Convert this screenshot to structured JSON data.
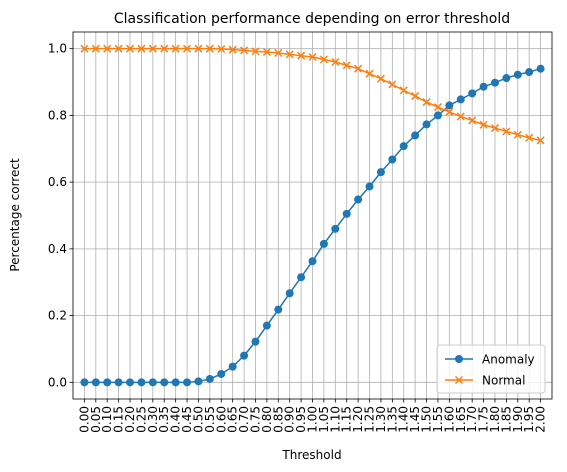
{
  "chart_data": {
    "type": "line",
    "title": "Classification performance depending on error threshold",
    "xlabel": "Threshold",
    "ylabel": "Percentage correct",
    "categories": [
      "0.00",
      "0.05",
      "0.10",
      "0.15",
      "0.20",
      "0.25",
      "0.30",
      "0.35",
      "0.40",
      "0.45",
      "0.50",
      "0.55",
      "0.60",
      "0.65",
      "0.70",
      "0.75",
      "0.80",
      "0.85",
      "0.90",
      "0.95",
      "1.00",
      "1.05",
      "1.10",
      "1.15",
      "1.20",
      "1.25",
      "1.30",
      "1.35",
      "1.40",
      "1.45",
      "1.50",
      "1.55",
      "1.60",
      "1.65",
      "1.70",
      "1.75",
      "1.80",
      "1.85",
      "1.90",
      "1.95",
      "2.00"
    ],
    "series": [
      {
        "name": "Anomaly",
        "color": "#1f77b4",
        "marker": "o",
        "values": [
          0,
          0,
          0,
          0,
          0,
          0,
          0,
          0,
          0,
          0,
          0.003,
          0.01,
          0.025,
          0.047,
          0.08,
          0.122,
          0.17,
          0.218,
          0.267,
          0.315,
          0.363,
          0.415,
          0.46,
          0.505,
          0.548,
          0.587,
          0.63,
          0.668,
          0.708,
          0.74,
          0.773,
          0.8,
          0.83,
          0.848,
          0.866,
          0.886,
          0.898,
          0.912,
          0.922,
          0.93,
          0.94
        ]
      },
      {
        "name": "Normal",
        "color": "#ff7f0e",
        "marker": "x",
        "values": [
          1,
          1,
          1,
          1,
          1,
          1,
          1,
          1,
          1,
          1,
          1,
          1,
          0.999,
          0.997,
          0.995,
          0.992,
          0.99,
          0.987,
          0.983,
          0.979,
          0.975,
          0.968,
          0.96,
          0.95,
          0.94,
          0.925,
          0.91,
          0.893,
          0.875,
          0.858,
          0.84,
          0.825,
          0.81,
          0.797,
          0.785,
          0.772,
          0.762,
          0.752,
          0.742,
          0.733,
          0.725
        ]
      }
    ],
    "ylim": [
      -0.05,
      1.05
    ],
    "yticks": [
      {
        "value": 0,
        "label": "0.0"
      },
      {
        "value": 0.2,
        "label": "0.2"
      },
      {
        "value": 0.4,
        "label": "0.4"
      },
      {
        "value": 0.6,
        "label": "0.6"
      },
      {
        "value": 0.8,
        "label": "0.8"
      },
      {
        "value": 1,
        "label": "1.0"
      }
    ],
    "grid": true,
    "legend": "lower right"
  }
}
